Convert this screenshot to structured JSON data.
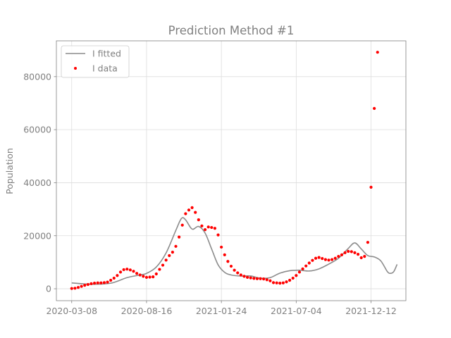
{
  "chart_data": {
    "type": "line",
    "title": "Prediction Method #1",
    "xlabel": "",
    "ylabel": "Population",
    "x_ticks": [
      "2020-03-08",
      "2020-08-16",
      "2021-01-24",
      "2021-07-04",
      "2021-12-12"
    ],
    "y_ticks": [
      "0",
      "20000",
      "40000",
      "60000",
      "80000"
    ],
    "ylim": [
      -4500,
      93500
    ],
    "xlim": [
      "2020-02-04",
      "2022-02-25"
    ],
    "grid": true,
    "legend_position": "upper-left",
    "colors": {
      "fitted": "#8c8c8c",
      "data": "#ff0000",
      "grid": "#dddddd",
      "text": "#808080",
      "spine": "#808080"
    },
    "series": [
      {
        "name": "I fitted",
        "style": "line",
        "points": [
          [
            "2020-03-08",
            2200
          ],
          [
            "2020-04-19",
            1700
          ],
          [
            "2020-05-31",
            2100
          ],
          [
            "2020-07-05",
            4200
          ],
          [
            "2020-08-02",
            5200
          ],
          [
            "2020-08-16",
            5800
          ],
          [
            "2020-09-06",
            8200
          ],
          [
            "2020-09-27",
            13500
          ],
          [
            "2020-10-18",
            22000
          ],
          [
            "2020-10-30",
            26500
          ],
          [
            "2020-11-08",
            26000
          ],
          [
            "2020-11-22",
            22500
          ],
          [
            "2020-12-06",
            23500
          ],
          [
            "2020-12-20",
            21000
          ],
          [
            "2021-01-03",
            15000
          ],
          [
            "2021-01-17",
            9000
          ],
          [
            "2021-01-31",
            6200
          ],
          [
            "2021-02-14",
            5200
          ],
          [
            "2021-03-07",
            4800
          ],
          [
            "2021-03-28",
            4800
          ],
          [
            "2021-04-18",
            4000
          ],
          [
            "2021-05-09",
            4200
          ],
          [
            "2021-05-30",
            5900
          ],
          [
            "2021-06-20",
            6800
          ],
          [
            "2021-07-11",
            7000
          ],
          [
            "2021-08-01",
            6700
          ],
          [
            "2021-08-22",
            7500
          ],
          [
            "2021-09-12",
            9300
          ],
          [
            "2021-10-03",
            11500
          ],
          [
            "2021-10-24",
            15200
          ],
          [
            "2021-11-07",
            17300
          ],
          [
            "2021-11-21",
            15000
          ],
          [
            "2021-12-05",
            12500
          ],
          [
            "2021-12-19",
            12000
          ],
          [
            "2022-01-02",
            10500
          ],
          [
            "2022-01-16",
            6500
          ],
          [
            "2022-01-23",
            5800
          ],
          [
            "2022-01-30",
            6500
          ],
          [
            "2022-02-06",
            9200
          ]
        ]
      },
      {
        "name": "I data",
        "style": "scatter",
        "points": [
          [
            "2020-03-08",
            100
          ],
          [
            "2020-03-15",
            200
          ],
          [
            "2020-03-22",
            500
          ],
          [
            "2020-03-29",
            900
          ],
          [
            "2020-04-05",
            1300
          ],
          [
            "2020-04-12",
            1600
          ],
          [
            "2020-04-19",
            1900
          ],
          [
            "2020-04-26",
            2100
          ],
          [
            "2020-05-03",
            2200
          ],
          [
            "2020-05-10",
            2200
          ],
          [
            "2020-05-17",
            2300
          ],
          [
            "2020-05-24",
            2500
          ],
          [
            "2020-05-31",
            3200
          ],
          [
            "2020-06-07",
            4000
          ],
          [
            "2020-06-14",
            5000
          ],
          [
            "2020-06-21",
            6300
          ],
          [
            "2020-06-28",
            7200
          ],
          [
            "2020-07-05",
            7400
          ],
          [
            "2020-07-12",
            7100
          ],
          [
            "2020-07-19",
            6600
          ],
          [
            "2020-07-26",
            5800
          ],
          [
            "2020-08-02",
            5200
          ],
          [
            "2020-08-09",
            4700
          ],
          [
            "2020-08-16",
            4300
          ],
          [
            "2020-08-23",
            4400
          ],
          [
            "2020-08-30",
            4500
          ],
          [
            "2020-09-06",
            5600
          ],
          [
            "2020-09-13",
            7300
          ],
          [
            "2020-09-20",
            8900
          ],
          [
            "2020-09-27",
            10800
          ],
          [
            "2020-10-04",
            12500
          ],
          [
            "2020-10-11",
            13800
          ],
          [
            "2020-10-18",
            16000
          ],
          [
            "2020-10-25",
            19500
          ],
          [
            "2020-11-01",
            24000
          ],
          [
            "2020-11-08",
            28300
          ],
          [
            "2020-11-15",
            29700
          ],
          [
            "2020-11-22",
            30600
          ],
          [
            "2020-11-29",
            28800
          ],
          [
            "2020-12-06",
            26000
          ],
          [
            "2020-12-13",
            23700
          ],
          [
            "2020-12-20",
            22300
          ],
          [
            "2020-12-27",
            23300
          ],
          [
            "2021-01-03",
            23100
          ],
          [
            "2021-01-10",
            22800
          ],
          [
            "2021-01-17",
            20300
          ],
          [
            "2021-01-24",
            15700
          ],
          [
            "2021-01-31",
            12800
          ],
          [
            "2021-02-07",
            10300
          ],
          [
            "2021-02-14",
            8500
          ],
          [
            "2021-02-21",
            7000
          ],
          [
            "2021-02-28",
            6000
          ],
          [
            "2021-03-07",
            5200
          ],
          [
            "2021-03-14",
            4700
          ],
          [
            "2021-03-21",
            4300
          ],
          [
            "2021-03-28",
            4100
          ],
          [
            "2021-04-04",
            3900
          ],
          [
            "2021-04-11",
            3800
          ],
          [
            "2021-04-18",
            3800
          ],
          [
            "2021-04-25",
            3700
          ],
          [
            "2021-05-02",
            3400
          ],
          [
            "2021-05-09",
            3000
          ],
          [
            "2021-05-16",
            2300
          ],
          [
            "2021-05-23",
            2200
          ],
          [
            "2021-05-30",
            2100
          ],
          [
            "2021-06-06",
            2200
          ],
          [
            "2021-06-13",
            2600
          ],
          [
            "2021-06-20",
            3200
          ],
          [
            "2021-06-27",
            4000
          ],
          [
            "2021-07-04",
            5000
          ],
          [
            "2021-07-11",
            6300
          ],
          [
            "2021-07-18",
            7500
          ],
          [
            "2021-07-25",
            8600
          ],
          [
            "2021-08-01",
            9700
          ],
          [
            "2021-08-08",
            10700
          ],
          [
            "2021-08-15",
            11500
          ],
          [
            "2021-08-22",
            11800
          ],
          [
            "2021-08-29",
            11400
          ],
          [
            "2021-09-05",
            11000
          ],
          [
            "2021-09-12",
            10800
          ],
          [
            "2021-09-19",
            11000
          ],
          [
            "2021-09-26",
            11500
          ],
          [
            "2021-10-03",
            12200
          ],
          [
            "2021-10-10",
            12800
          ],
          [
            "2021-10-17",
            13600
          ],
          [
            "2021-10-24",
            14100
          ],
          [
            "2021-10-31",
            14000
          ],
          [
            "2021-11-07",
            13600
          ],
          [
            "2021-11-14",
            13000
          ],
          [
            "2021-11-21",
            11700
          ],
          [
            "2021-11-28",
            12200
          ],
          [
            "2021-12-05",
            17500
          ],
          [
            "2021-12-12",
            38300
          ],
          [
            "2021-12-19",
            68000
          ],
          [
            "2021-12-26",
            89200
          ]
        ]
      }
    ]
  }
}
